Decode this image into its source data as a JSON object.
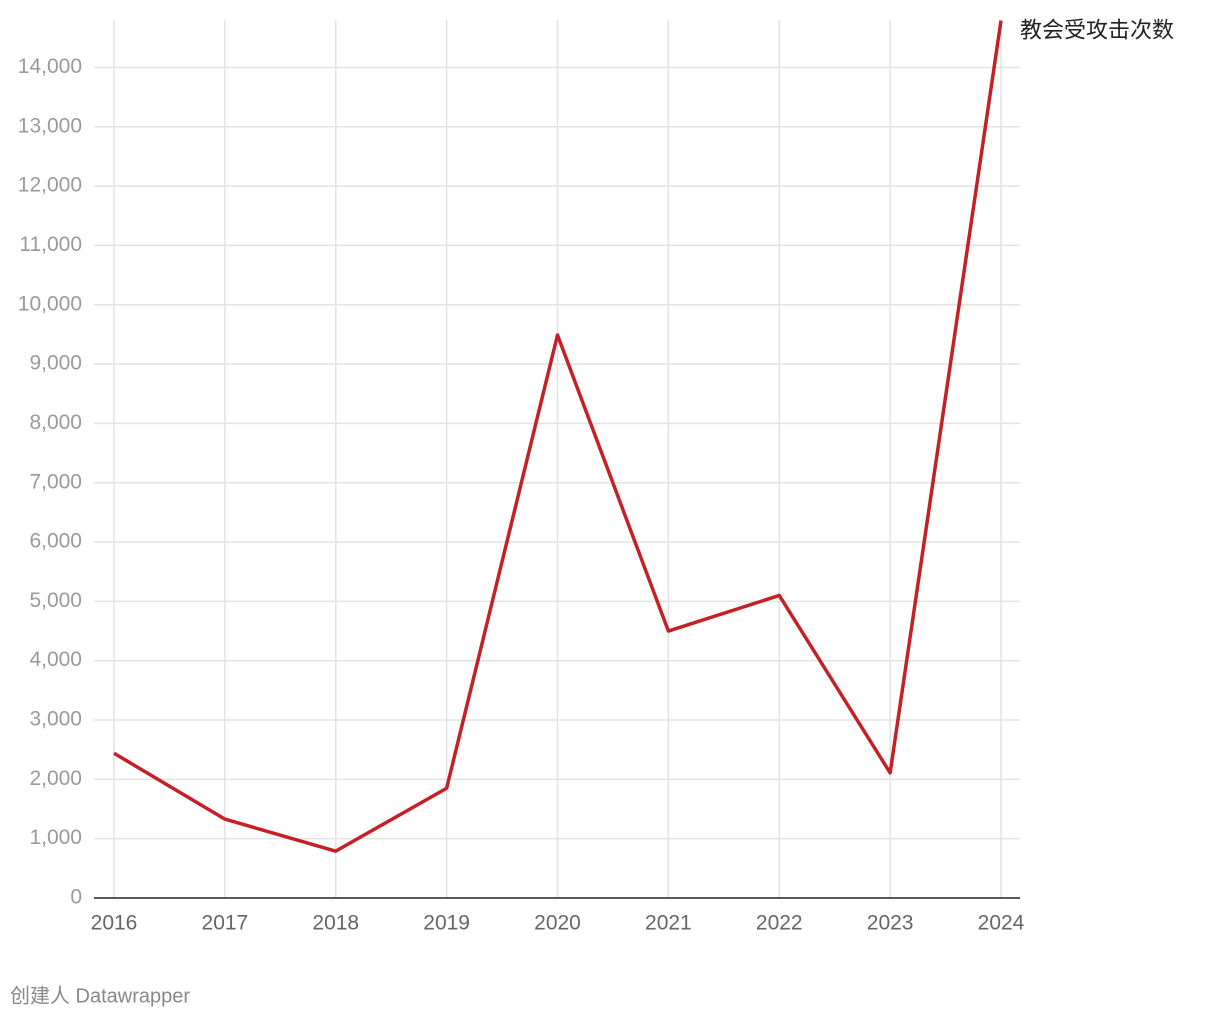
{
  "chart_data": {
    "type": "line",
    "x": [
      2016,
      2017,
      2018,
      2019,
      2020,
      2021,
      2022,
      2023,
      2024
    ],
    "series": [
      {
        "name": "教会受攻击次数",
        "color": "#c42126",
        "values": [
          2440,
          1330,
          790,
          1850,
          9490,
          4500,
          5100,
          2110,
          14790
        ]
      }
    ],
    "xlim": [
      2016,
      2024
    ],
    "xticks": [
      2016,
      2017,
      2018,
      2019,
      2020,
      2021,
      2022,
      2023,
      2024
    ],
    "ylim": [
      0,
      14800
    ],
    "yticks": [
      0,
      {
        "value": 1000,
        "label": "1,000"
      },
      {
        "value": 2000,
        "label": "2,000"
      },
      {
        "value": 3000,
        "label": "3,000"
      },
      {
        "value": 4000,
        "label": "4,000"
      },
      {
        "value": 5000,
        "label": "5,000"
      },
      {
        "value": 6000,
        "label": "6,000"
      },
      {
        "value": 7000,
        "label": "7,000"
      },
      {
        "value": 8000,
        "label": "8,000"
      },
      {
        "value": 9000,
        "label": "9,000"
      },
      {
        "value": 10000,
        "label": "10,000"
      },
      {
        "value": 11000,
        "label": "11,000"
      },
      {
        "value": 12000,
        "label": "12,000"
      },
      {
        "value": 13000,
        "label": "13,000"
      },
      {
        "value": 14000,
        "label": "14,000"
      }
    ],
    "grid": true,
    "footer": "创建人 Datawrapper"
  }
}
